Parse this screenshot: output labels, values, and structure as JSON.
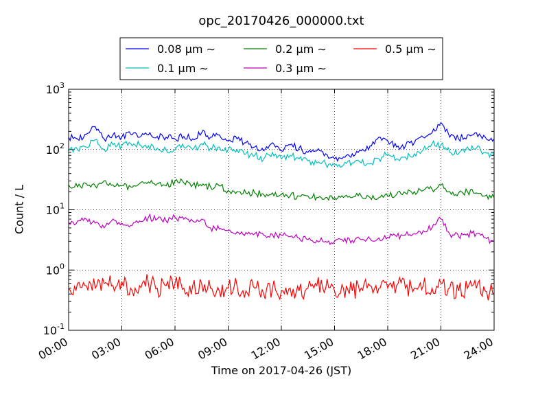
{
  "chart_data": {
    "type": "line",
    "title": "opc_20170426_000000.txt",
    "xlabel": "Time on 2017-04-26 (JST)",
    "ylabel": "Count / L",
    "x_ticks": [
      "00:00",
      "03:00",
      "06:00",
      "09:00",
      "12:00",
      "15:00",
      "18:00",
      "21:00",
      "24:00"
    ],
    "y_tick_exponents": [
      -1,
      0,
      1,
      2,
      3
    ],
    "y_scale": "log",
    "ylim": [
      0.1,
      1000
    ],
    "xlim_hours": [
      0,
      24
    ],
    "grid": true,
    "legend_position": "top-center",
    "legend_unit_suffix": "μm ∼",
    "series": [
      {
        "name": "0.08",
        "color": "#0000ff",
        "x_hours": [
          0,
          0.5,
          1,
          1.5,
          2,
          2.5,
          3,
          3.5,
          4,
          4.5,
          5,
          5.5,
          6,
          6.5,
          7,
          7.5,
          8,
          8.5,
          9,
          9.5,
          10,
          10.5,
          11,
          11.5,
          12,
          12.5,
          13,
          13.5,
          14,
          14.5,
          15,
          15.5,
          16,
          16.5,
          17,
          17.5,
          18,
          18.5,
          19,
          19.5,
          20,
          20.5,
          21,
          21.5,
          22,
          22.5,
          23,
          23.5,
          24
        ],
        "values": [
          160,
          150,
          180,
          240,
          150,
          175,
          160,
          180,
          160,
          175,
          165,
          160,
          150,
          165,
          150,
          190,
          160,
          175,
          140,
          150,
          130,
          110,
          95,
          130,
          95,
          120,
          105,
          90,
          95,
          85,
          70,
          75,
          85,
          95,
          115,
          160,
          140,
          110,
          115,
          130,
          160,
          190,
          280,
          160,
          150,
          175,
          190,
          160,
          150
        ]
      },
      {
        "name": "0.1",
        "color": "#00bfbf",
        "x_hours": [
          0,
          0.5,
          1,
          1.5,
          2,
          2.5,
          3,
          3.5,
          4,
          4.5,
          5,
          5.5,
          6,
          6.5,
          7,
          7.5,
          8,
          8.5,
          9,
          9.5,
          10,
          10.5,
          11,
          11.5,
          12,
          12.5,
          13,
          13.5,
          14,
          14.5,
          15,
          15.5,
          16,
          16.5,
          17,
          17.5,
          18,
          18.5,
          19,
          19.5,
          20,
          20.5,
          21,
          21.5,
          22,
          22.5,
          23,
          23.5,
          24
        ],
        "values": [
          95,
          100,
          110,
          145,
          100,
          120,
          115,
          125,
          120,
          115,
          105,
          100,
          100,
          110,
          100,
          125,
          105,
          110,
          100,
          100,
          85,
          80,
          70,
          90,
          70,
          80,
          70,
          65,
          60,
          58,
          55,
          55,
          60,
          60,
          58,
          70,
          85,
          70,
          75,
          85,
          100,
          125,
          120,
          90,
          85,
          110,
          105,
          90,
          80
        ]
      },
      {
        "name": "0.2",
        "color": "#008000",
        "x_hours": [
          0,
          0.5,
          1,
          1.5,
          2,
          2.5,
          3,
          3.5,
          4,
          4.5,
          5,
          5.5,
          6,
          6.5,
          7,
          7.5,
          8,
          8.5,
          9,
          9.5,
          10,
          10.5,
          11,
          11.5,
          12,
          12.5,
          13,
          13.5,
          14,
          14.5,
          15,
          15.5,
          16,
          16.5,
          17,
          17.5,
          18,
          18.5,
          19,
          19.5,
          20,
          20.5,
          21,
          21.5,
          22,
          22.5,
          23,
          23.5,
          24
        ],
        "values": [
          26,
          24,
          27,
          25,
          30,
          26,
          25,
          24,
          27,
          29,
          27,
          25,
          30,
          28,
          26,
          25,
          24,
          25,
          21,
          20,
          19,
          19,
          18,
          19,
          18,
          17,
          17,
          17,
          16,
          16,
          16,
          16,
          16,
          17,
          16,
          16,
          17,
          18,
          19,
          20,
          21,
          22,
          26,
          20,
          19,
          20,
          19,
          17,
          16
        ]
      },
      {
        "name": "0.3",
        "color": "#bf00bf",
        "x_hours": [
          0,
          0.5,
          1,
          1.5,
          2,
          2.5,
          3,
          3.5,
          4,
          4.5,
          5,
          5.5,
          6,
          6.5,
          7,
          7.5,
          8,
          8.5,
          9,
          9.5,
          10,
          10.5,
          11,
          11.5,
          12,
          12.5,
          13,
          13.5,
          14,
          14.5,
          15,
          15.5,
          16,
          16.5,
          17,
          17.5,
          18,
          18.5,
          19,
          19.5,
          20,
          20.5,
          21,
          21.5,
          22,
          22.5,
          23,
          23.5,
          24
        ],
        "values": [
          6,
          6.5,
          7,
          6,
          5,
          7,
          6,
          5.5,
          6.5,
          7.5,
          7,
          6.5,
          7.5,
          7,
          6.5,
          7,
          5,
          4.8,
          4.5,
          4.3,
          4.2,
          4.0,
          3.8,
          3.9,
          3.8,
          3.6,
          3.4,
          3.2,
          3.1,
          3.0,
          3.0,
          3.0,
          3.1,
          3.2,
          3.3,
          3.4,
          3.5,
          3.6,
          3.8,
          4.0,
          4.5,
          5.0,
          7.0,
          4.0,
          3.6,
          4.0,
          4.0,
          3.4,
          3.0
        ]
      },
      {
        "name": "0.5",
        "color": "#ff0000",
        "x_hours": [
          0,
          0.5,
          1,
          1.5,
          2,
          2.5,
          3,
          3.5,
          4,
          4.5,
          5,
          5.5,
          6,
          6.5,
          7,
          7.5,
          8,
          8.5,
          9,
          9.5,
          10,
          10.5,
          11,
          11.5,
          12,
          12.5,
          13,
          13.5,
          14,
          14.5,
          15,
          15.5,
          16,
          16.5,
          17,
          17.5,
          18,
          18.5,
          19,
          19.5,
          20,
          20.5,
          21,
          21.5,
          22,
          22.5,
          23,
          23.5,
          24
        ],
        "values": [
          0.5,
          0.6,
          0.55,
          0.5,
          0.6,
          0.55,
          0.65,
          0.5,
          0.55,
          0.6,
          0.5,
          0.55,
          0.6,
          0.5,
          0.55,
          0.6,
          0.5,
          0.45,
          0.5,
          0.55,
          0.45,
          0.5,
          0.4,
          0.5,
          0.45,
          0.5,
          0.45,
          0.5,
          0.55,
          0.5,
          0.45,
          0.5,
          0.45,
          0.5,
          0.55,
          0.5,
          0.5,
          0.55,
          0.5,
          0.5,
          0.55,
          0.5,
          0.6,
          0.5,
          0.45,
          0.5,
          0.5,
          0.45,
          0.4
        ]
      }
    ]
  }
}
